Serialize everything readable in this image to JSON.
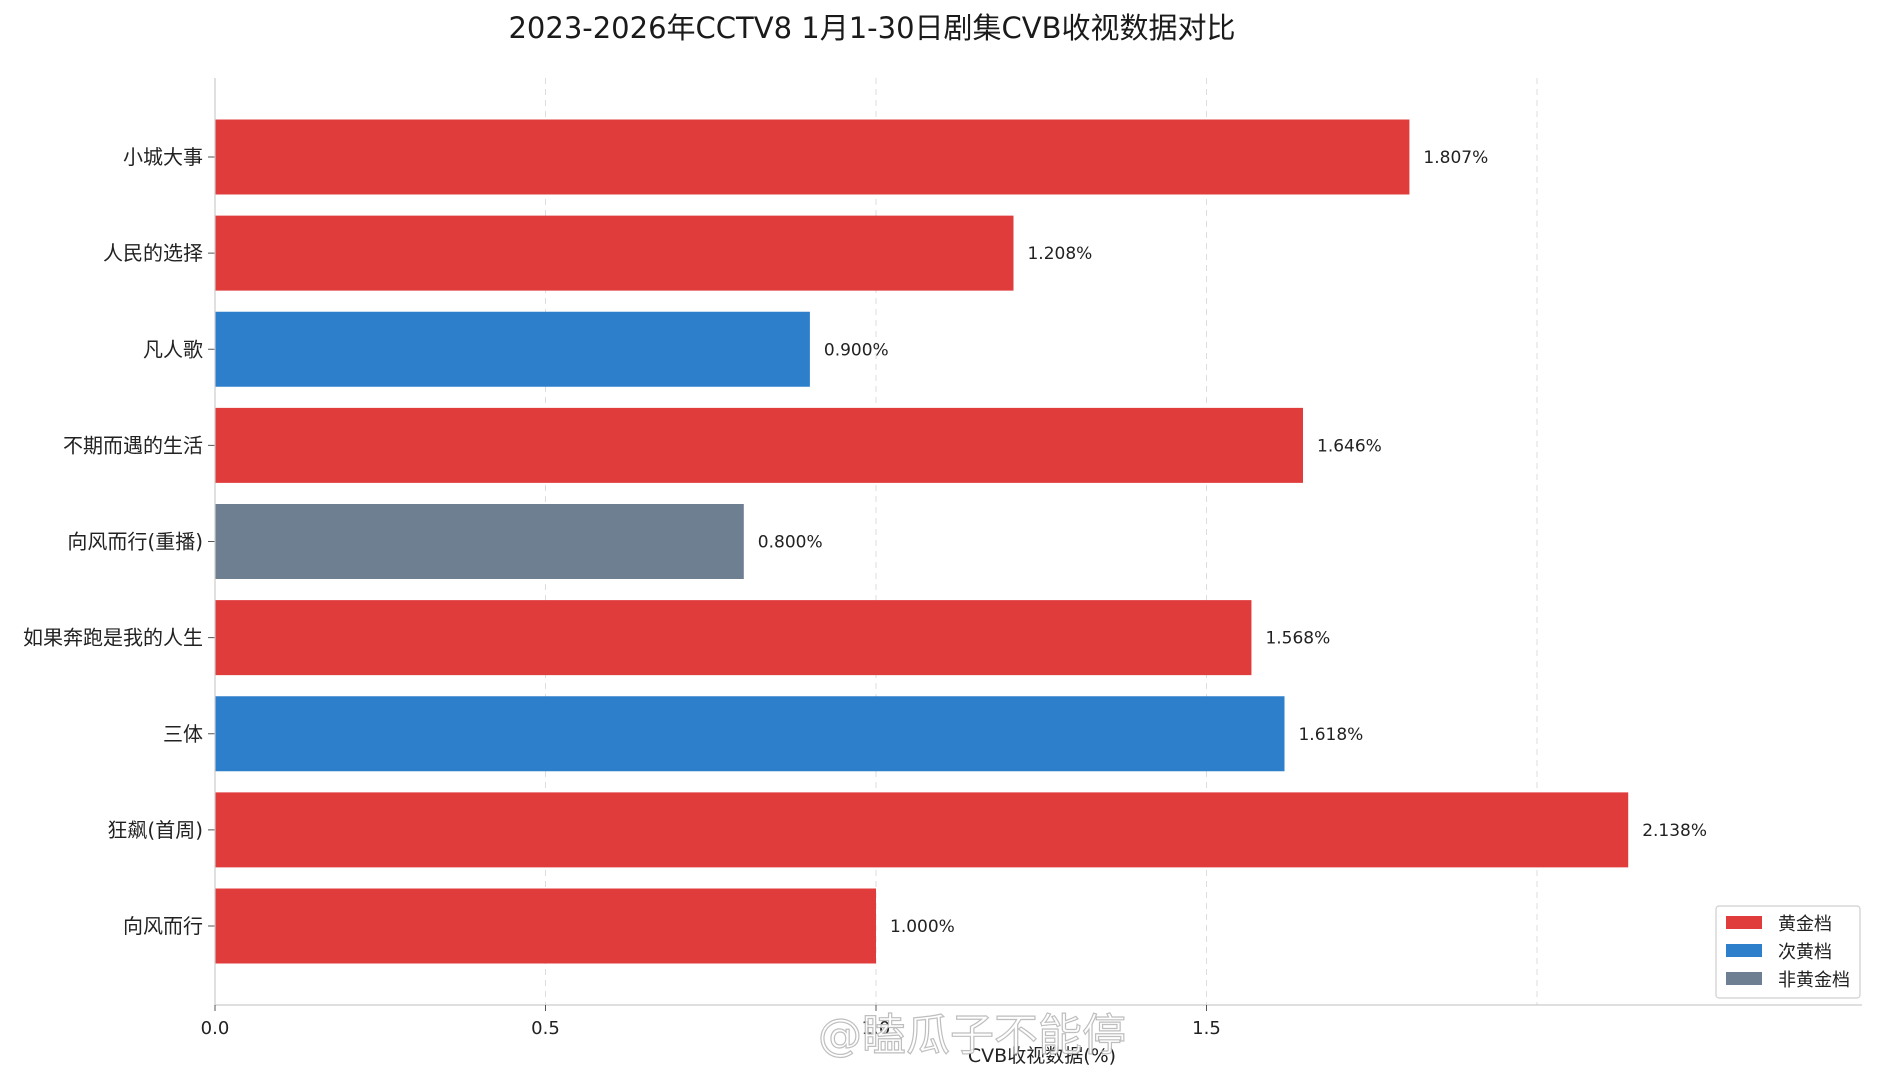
{
  "chart_data": {
    "type": "bar",
    "orientation": "horizontal",
    "title": "2023-2026年CCTV8 1月1-30日剧集CVB收视数据对比",
    "xlabel": "CVB收视数据(%)",
    "ylabel": "",
    "xlim": [
      0,
      2.5
    ],
    "xticks": [
      "0.0",
      "0.5",
      "1.0",
      "1.5"
    ],
    "grid": "vertical dashed",
    "legend_position": "bottom-right",
    "categories": [
      "小城大事",
      "人民的选择",
      "凡人歌",
      "不期而遇的生活",
      "向风而行(重播)",
      "如果奔跑是我的人生",
      "三体",
      "狂飙(首周)",
      "向风而行"
    ],
    "values": [
      1.807,
      1.208,
      0.9,
      1.646,
      0.8,
      1.568,
      1.618,
      2.138,
      1.0
    ],
    "value_labels": [
      "1.807%",
      "1.208%",
      "0.900%",
      "1.646%",
      "0.800%",
      "1.568%",
      "1.618%",
      "2.138%",
      "1.000%"
    ],
    "bar_groups": [
      "黄金档",
      "黄金档",
      "次黄档",
      "黄金档",
      "非黄金档",
      "黄金档",
      "次黄档",
      "黄金档",
      "黄金档"
    ],
    "legend": [
      {
        "name": "黄金档",
        "color": "#e03c3c"
      },
      {
        "name": "次黄档",
        "color": "#2e7fcb"
      },
      {
        "name": "非黄金档",
        "color": "#6f7f92"
      }
    ]
  },
  "watermark": "@瞌瓜子不能停"
}
